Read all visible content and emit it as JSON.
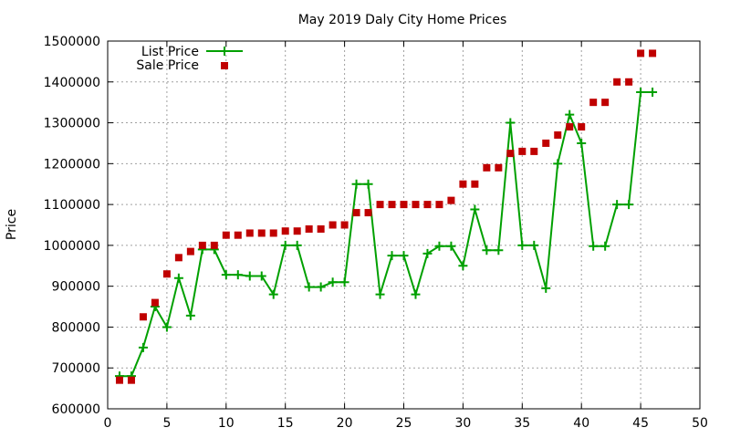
{
  "chart_data": {
    "type": "line",
    "title": "May 2019 Daly City Home Prices",
    "xlabel": "",
    "ylabel": "Price",
    "xlim": [
      0,
      50
    ],
    "ylim": [
      600000,
      1500000
    ],
    "xticks": [
      "0",
      "5",
      "10",
      "15",
      "20",
      "25",
      "30",
      "35",
      "40",
      "45",
      "50"
    ],
    "yticks": [
      "600000",
      "700000",
      "800000",
      "900000",
      "1000000",
      "1100000",
      "1200000",
      "1300000",
      "1400000",
      "1500000"
    ],
    "grid": true,
    "legend_position": "top-left",
    "series": [
      {
        "name": "List Price",
        "style": "line-with-plus-markers",
        "color": "#00a000",
        "x": [
          1,
          2,
          3,
          4,
          5,
          6,
          7,
          8,
          9,
          10,
          11,
          12,
          13,
          14,
          15,
          16,
          17,
          18,
          19,
          20,
          21,
          22,
          23,
          24,
          25,
          26,
          27,
          28,
          29,
          30,
          31,
          32,
          33,
          34,
          35,
          36,
          37,
          38,
          39,
          40,
          41,
          42,
          43,
          44,
          45,
          46
        ],
        "y": [
          680000,
          680000,
          750000,
          850000,
          800000,
          920000,
          828000,
          990000,
          990000,
          928000,
          928000,
          925000,
          925000,
          880000,
          1000000,
          1000000,
          898000,
          898000,
          910000,
          910000,
          1150000,
          1150000,
          880000,
          975000,
          975000,
          880000,
          980000,
          998000,
          998000,
          950000,
          1088000,
          988000,
          988000,
          1300000,
          1000000,
          1000000,
          895000,
          1200000,
          1320000,
          1250000,
          998000,
          998000,
          1100000,
          1100000,
          1375000,
          1375000
        ]
      },
      {
        "name": "Sale Price",
        "style": "square-markers",
        "color": "#c00000",
        "x": [
          1,
          2,
          3,
          4,
          5,
          6,
          7,
          8,
          9,
          10,
          11,
          12,
          13,
          14,
          15,
          16,
          17,
          18,
          19,
          20,
          21,
          22,
          23,
          24,
          25,
          26,
          27,
          28,
          29,
          30,
          31,
          32,
          33,
          34,
          35,
          36,
          37,
          38,
          39,
          40,
          41,
          42,
          43,
          44,
          45,
          46
        ],
        "y": [
          670000,
          670000,
          825000,
          860000,
          930000,
          970000,
          985000,
          1000000,
          1000000,
          1025000,
          1025000,
          1030000,
          1030000,
          1030000,
          1035000,
          1035000,
          1040000,
          1040000,
          1050000,
          1050000,
          1080000,
          1080000,
          1100000,
          1100000,
          1100000,
          1100000,
          1100000,
          1100000,
          1110000,
          1150000,
          1150000,
          1190000,
          1190000,
          1225000,
          1230000,
          1230000,
          1250000,
          1270000,
          1290000,
          1290000,
          1350000,
          1350000,
          1400000,
          1400000,
          1470000,
          1470000
        ]
      }
    ]
  }
}
